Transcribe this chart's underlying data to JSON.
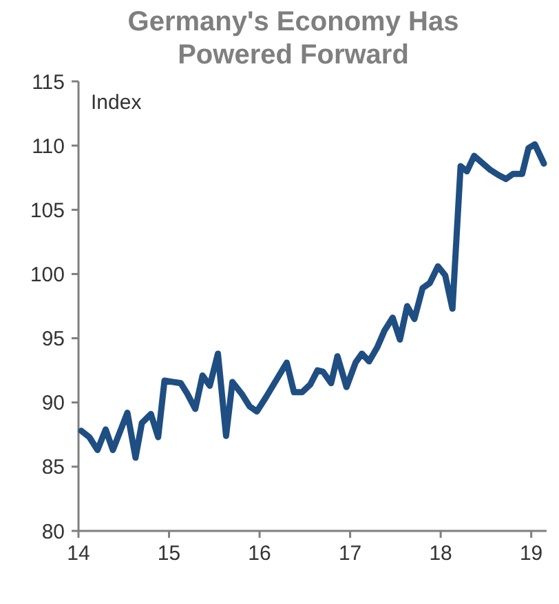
{
  "chart_data": {
    "type": "line",
    "title": "Germany's Economy Has Powered Forward",
    "ylabel": "Index",
    "x": [
      14.03,
      14.12,
      14.21,
      14.3,
      14.38,
      14.54,
      14.63,
      14.7,
      14.8,
      14.88,
      14.95,
      15.13,
      15.2,
      15.29,
      15.37,
      15.45,
      15.54,
      15.63,
      15.7,
      15.81,
      15.89,
      15.97,
      16.07,
      16.3,
      16.38,
      16.47,
      16.56,
      16.64,
      16.7,
      16.79,
      16.86,
      16.96,
      17.06,
      17.13,
      17.21,
      17.3,
      17.38,
      17.47,
      17.55,
      17.63,
      17.71,
      17.8,
      17.88,
      17.97,
      18.05,
      18.13,
      18.22,
      18.29,
      18.37,
      18.55,
      18.64,
      18.72,
      18.8,
      18.9,
      18.97,
      19.04,
      19.14
    ],
    "series": [
      {
        "color": "#1f4e82",
        "values": [
          87.8,
          87.3,
          86.3,
          87.9,
          86.3,
          89.2,
          85.7,
          88.4,
          89.1,
          87.3,
          91.7,
          91.5,
          90.7,
          89.5,
          92.1,
          91.3,
          93.8,
          87.4,
          91.6,
          90.6,
          89.7,
          89.3,
          90.4,
          93.1,
          90.8,
          90.8,
          91.4,
          92.5,
          92.4,
          91.5,
          93.6,
          91.2,
          93.1,
          93.8,
          93.2,
          94.3,
          95.6,
          96.6,
          94.9,
          97.5,
          96.5,
          98.9,
          99.3,
          100.6,
          99.9,
          97.3,
          108.4,
          108.0,
          109.2,
          108.1,
          107.7,
          107.4,
          107.8,
          107.8,
          109.8,
          110.1,
          108.6
        ]
      }
    ],
    "xlim": [
      14,
      19.17
    ],
    "xticks": [
      14,
      15,
      16,
      17,
      18,
      19
    ],
    "ylim": [
      80,
      115
    ],
    "yticks": [
      80,
      85,
      90,
      95,
      100,
      105,
      110,
      115
    ],
    "grid": false,
    "marker": "none",
    "line_style": "solid"
  }
}
